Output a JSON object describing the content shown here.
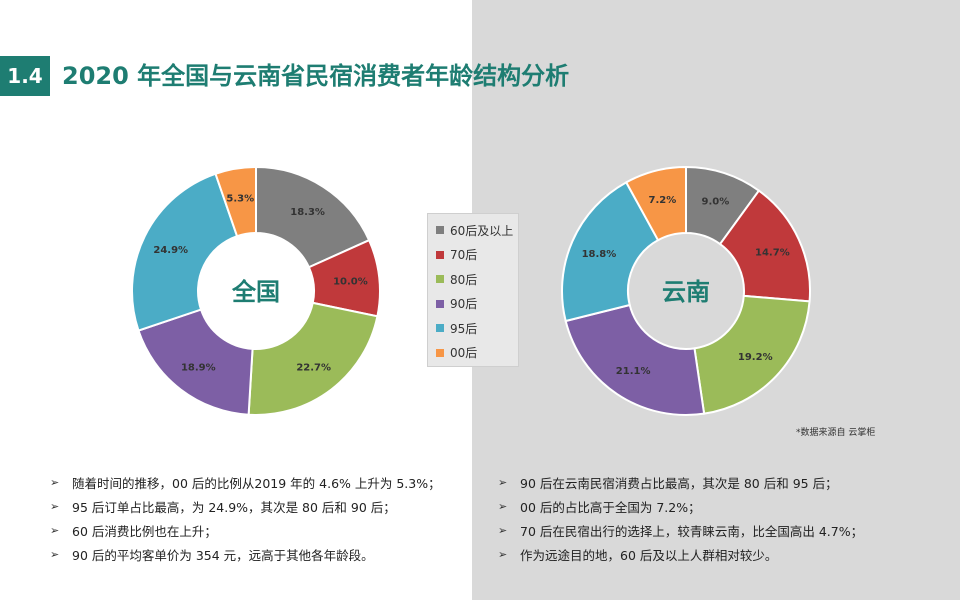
{
  "header": {
    "section_number": "1.4",
    "title": "2020 年全国与云南省民宿消费者年龄结构分析"
  },
  "chart_data": [
    {
      "type": "pie",
      "center_label": "全国",
      "categories": [
        "60后及以上",
        "70后",
        "80后",
        "90后",
        "95后",
        "00后"
      ],
      "values": [
        18.3,
        10.0,
        22.7,
        18.9,
        24.9,
        5.3
      ],
      "value_labels": [
        "18.3%",
        "10.0%",
        "22.7%",
        "18.9%",
        "24.9%",
        "5.3%"
      ]
    },
    {
      "type": "pie",
      "center_label": "云南",
      "categories": [
        "60后及以上",
        "70后",
        "80后",
        "90后",
        "95后",
        "00后"
      ],
      "values": [
        9.0,
        14.7,
        19.2,
        21.1,
        18.8,
        7.2
      ],
      "value_labels": [
        "9.0%",
        "14.7%",
        "19.2%",
        "21.1%",
        "18.8%",
        "7.2%"
      ]
    }
  ],
  "legend": {
    "items": [
      {
        "label": "60后及以上",
        "color": "#7f7f7f"
      },
      {
        "label": "70后",
        "color": "#c0393b"
      },
      {
        "label": "80后",
        "color": "#9bbb59"
      },
      {
        "label": "90后",
        "color": "#7d5fa5"
      },
      {
        "label": "95后",
        "color": "#4bacc6"
      },
      {
        "label": "00后",
        "color": "#f79646"
      }
    ]
  },
  "source_note": "*数据来源自 云掌柜",
  "left_bullets": [
    "随着时间的推移，00 后的比例从2019 年的 4.6% 上升为 5.3%；",
    "95 后订单占比最高，为 24.9%，其次是 80 后和 90 后；",
    "60 后消费比例也在上升；",
    "90 后的平均客单价为 354 元，远高于其他各年龄段。"
  ],
  "right_bullets": [
    "90 后在云南民宿消费占比最高，其次是 80 后和 95 后；",
    "00 后的占比高于全国为 7.2%；",
    "70 后在民宿出行的选择上，较青睐云南，比全国高出 4.7%；",
    "作为远途目的地，60 后及以上人群相对较少。"
  ],
  "bullet_marker": "➢",
  "colors": {
    "accent": "#1e7d72",
    "right_panel_bg": "#d9d9d9"
  }
}
